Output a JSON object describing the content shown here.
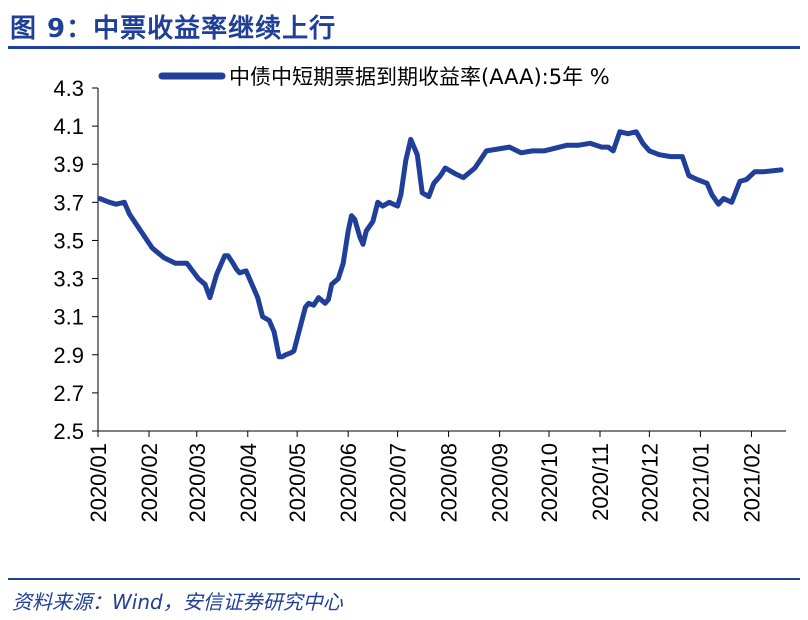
{
  "header": {
    "title": "图 9：中票收益率继续上行"
  },
  "footer": {
    "source": "资料来源：Wind，安信证券研究中心"
  },
  "chart_data": {
    "type": "line",
    "title": "",
    "xlabel": "",
    "ylabel": "",
    "unit": "%",
    "ylim": [
      2.5,
      4.3
    ],
    "yticks": [
      "4.3",
      "4.1",
      "3.9",
      "3.7",
      "3.5",
      "3.3",
      "3.1",
      "2.9",
      "2.7",
      "2.5"
    ],
    "categories": [
      "2020/01",
      "2020/02",
      "2020/03",
      "2020/04",
      "2020/05",
      "2020/06",
      "2020/07",
      "2020/08",
      "2020/09",
      "2020/10",
      "2020/11",
      "2020/12",
      "2021/01",
      "2021/02"
    ],
    "legend": {
      "position": "top",
      "label": "中债中短期票据到期收益率(AAA):5年 %"
    },
    "series": [
      {
        "name": "中债中短期票据到期收益率(AAA):5年 %",
        "color": "#1f3f99",
        "x": [
          "2020-01-02",
          "2020-01-08",
          "2020-01-12",
          "2020-01-17",
          "2020-01-20",
          "2020-02-03",
          "2020-02-10",
          "2020-02-17",
          "2020-02-24",
          "2020-03-02",
          "2020-03-06",
          "2020-03-09",
          "2020-03-13",
          "2020-03-18",
          "2020-03-20",
          "2020-03-23",
          "2020-03-25",
          "2020-03-27",
          "2020-03-31",
          "2020-04-03",
          "2020-04-07",
          "2020-04-10",
          "2020-04-14",
          "2020-04-17",
          "2020-04-20",
          "2020-04-22",
          "2020-04-24",
          "2020-04-27",
          "2020-04-29",
          "2020-05-06",
          "2020-05-08",
          "2020-05-11",
          "2020-05-14",
          "2020-05-18",
          "2020-05-20",
          "2020-05-22",
          "2020-05-26",
          "2020-05-29",
          "2020-06-01",
          "2020-06-03",
          "2020-06-05",
          "2020-06-08",
          "2020-06-10",
          "2020-06-12",
          "2020-06-16",
          "2020-06-19",
          "2020-06-22",
          "2020-06-26",
          "2020-07-01",
          "2020-07-03",
          "2020-07-06",
          "2020-07-09",
          "2020-07-13",
          "2020-07-16",
          "2020-07-20",
          "2020-07-23",
          "2020-07-27",
          "2020-07-30",
          "2020-08-05",
          "2020-08-10",
          "2020-08-17",
          "2020-08-24",
          "2020-08-31",
          "2020-09-07",
          "2020-09-14",
          "2020-09-21",
          "2020-09-28",
          "2020-10-12",
          "2020-10-19",
          "2020-10-26",
          "2020-11-02",
          "2020-11-06",
          "2020-11-09",
          "2020-11-13",
          "2020-11-18",
          "2020-11-23",
          "2020-11-27",
          "2020-12-01",
          "2020-12-07",
          "2020-12-14",
          "2020-12-21",
          "2020-12-25",
          "2020-12-30",
          "2021-01-05",
          "2021-01-08",
          "2021-01-12",
          "2021-01-15",
          "2021-01-20",
          "2021-01-25",
          "2021-01-29",
          "2021-02-03",
          "2021-02-08",
          "2021-02-19"
        ],
        "values": [
          3.72,
          3.7,
          3.69,
          3.7,
          3.64,
          3.46,
          3.41,
          3.38,
          3.38,
          3.3,
          3.27,
          3.2,
          3.32,
          3.42,
          3.42,
          3.38,
          3.35,
          3.33,
          3.34,
          3.28,
          3.2,
          3.1,
          3.08,
          3.02,
          2.89,
          2.89,
          2.9,
          2.91,
          2.92,
          3.15,
          3.17,
          3.16,
          3.2,
          3.17,
          3.19,
          3.27,
          3.3,
          3.38,
          3.55,
          3.63,
          3.61,
          3.52,
          3.48,
          3.55,
          3.6,
          3.7,
          3.68,
          3.7,
          3.68,
          3.74,
          3.92,
          4.03,
          3.95,
          3.75,
          3.73,
          3.8,
          3.84,
          3.88,
          3.85,
          3.83,
          3.88,
          3.97,
          3.98,
          3.99,
          3.96,
          3.97,
          3.97,
          4.0,
          4.0,
          4.01,
          3.99,
          3.99,
          3.97,
          4.07,
          4.06,
          4.07,
          4.01,
          3.97,
          3.95,
          3.94,
          3.94,
          3.84,
          3.82,
          3.8,
          3.74,
          3.69,
          3.72,
          3.7,
          3.81,
          3.82,
          3.86,
          3.86,
          3.87
        ]
      }
    ]
  }
}
